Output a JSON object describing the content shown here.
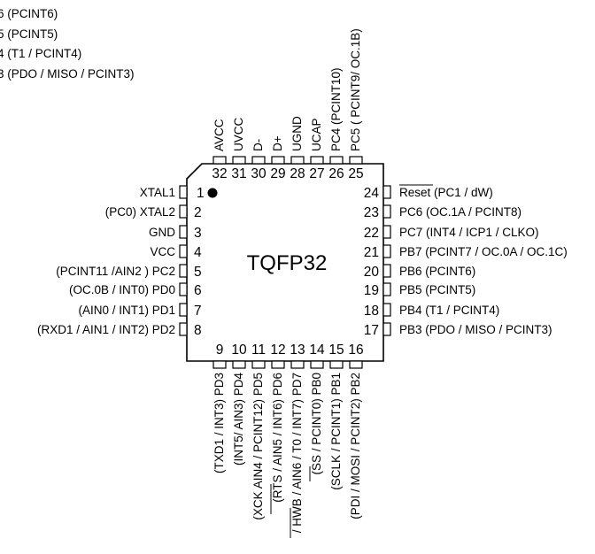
{
  "package": {
    "title": "TQFP32"
  },
  "top_fragments": [
    "6 (PCINT6)",
    "5 (PCINT5)",
    "4 (T1 / PCINT4)",
    "3 (PDO / MISO / PCINT3)"
  ],
  "pins_left": [
    {
      "num": "1",
      "label": "XTAL1"
    },
    {
      "num": "2",
      "label": "(PC0) XTAL2"
    },
    {
      "num": "3",
      "label": "GND"
    },
    {
      "num": "4",
      "label": "VCC"
    },
    {
      "num": "5",
      "label": "(PCINT11 /AIN2 ) PC2"
    },
    {
      "num": "6",
      "label": "(OC.0B / INT0) PD0"
    },
    {
      "num": "7",
      "label": "(AIN0 / INT1) PD1"
    },
    {
      "num": "8",
      "label": "(RXD1 / AIN1 / INT2) PD2"
    }
  ],
  "pins_bottom": [
    {
      "num": "9",
      "label": "(TXD1 / INT3) PD3"
    },
    {
      "num": "10",
      "label": "(INT5/ AIN3) PD4"
    },
    {
      "num": "11",
      "label": "(XCK AIN4 / PCINT12) PD5"
    },
    {
      "num": "12",
      "label": "(RTS / AIN5 / INT6) PD6"
    },
    {
      "num": "13",
      "label": "/ HWB / AIN6 / T0 / INT7) PD7"
    },
    {
      "num": "14",
      "label": "(SS / PCINT0) PB0"
    },
    {
      "num": "15",
      "label": "(SCLK / PCINT1) PB1"
    },
    {
      "num": "16",
      "label": "(PDI / MOSI / PCINT2) PB2"
    }
  ],
  "pins_right": [
    {
      "num": "24",
      "label": "Reset (PC1 / dW)"
    },
    {
      "num": "23",
      "label": "PC6 (OC.1A / PCINT8)"
    },
    {
      "num": "22",
      "label": "PC7 (INT4 / ICP1 / CLKO)"
    },
    {
      "num": "21",
      "label": "PB7 (PCINT7 / OC.0A / OC.1C)"
    },
    {
      "num": "20",
      "label": "PB6 (PCINT6)"
    },
    {
      "num": "19",
      "label": "PB5 (PCINT5)"
    },
    {
      "num": "18",
      "label": "PB4 (T1 / PCINT4)"
    },
    {
      "num": "17",
      "label": "PB3 (PDO / MISO / PCINT3)"
    }
  ],
  "pins_top": [
    {
      "num": "32",
      "label": "AVCC"
    },
    {
      "num": "31",
      "label": "UVCC"
    },
    {
      "num": "30",
      "label": "D-"
    },
    {
      "num": "29",
      "label": "D+"
    },
    {
      "num": "28",
      "label": "UGND"
    },
    {
      "num": "27",
      "label": "UCAP"
    },
    {
      "num": "26",
      "label": "PC4 (PCINT10)"
    },
    {
      "num": "25",
      "label": "PC5 ( PCINT9/ OC.1B)"
    }
  ]
}
